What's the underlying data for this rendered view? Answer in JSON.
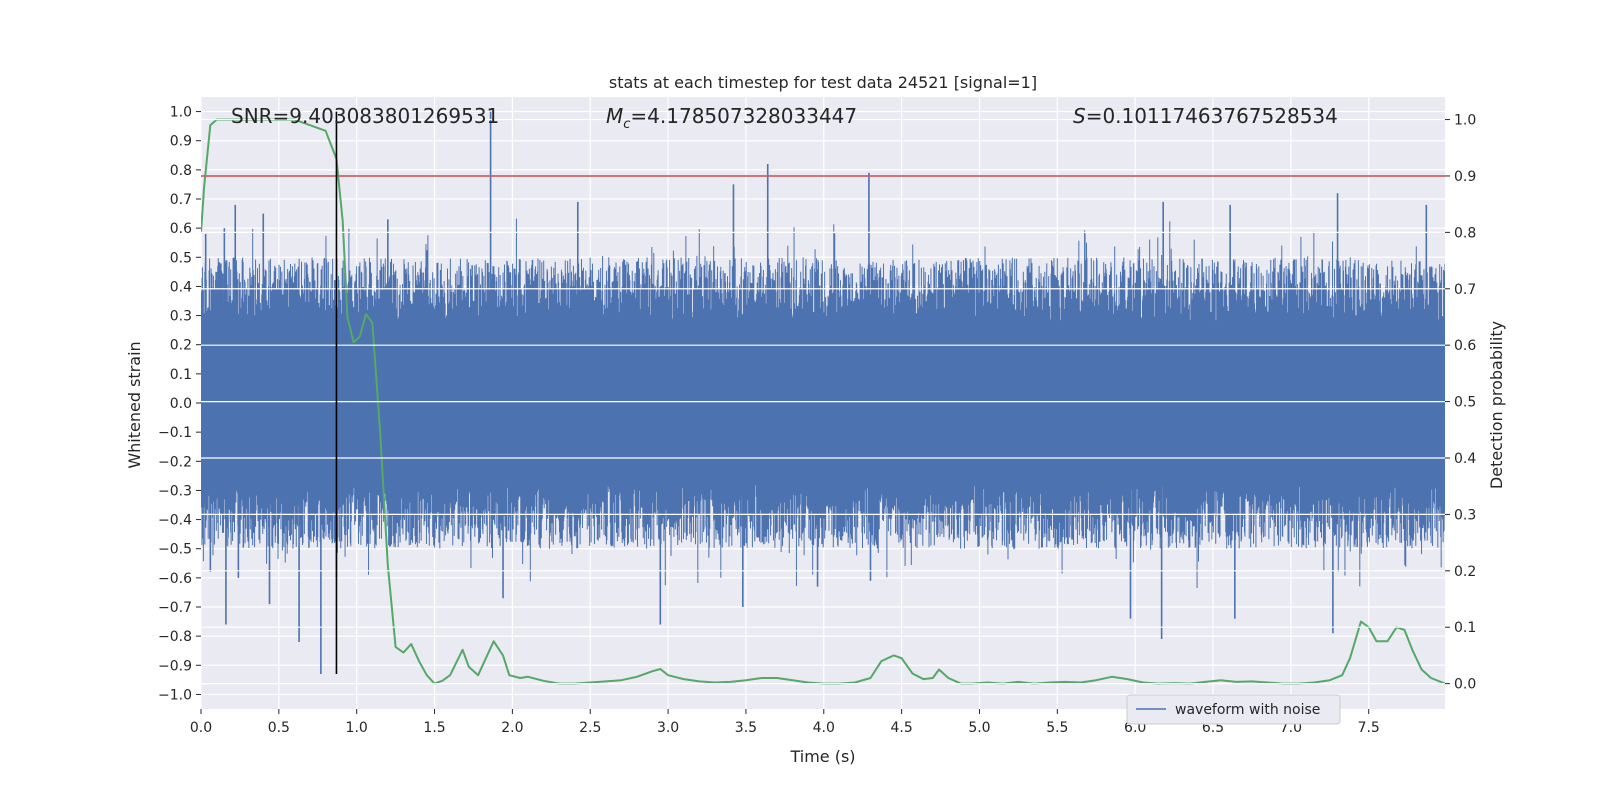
{
  "chart_data": {
    "type": "line",
    "title": "stats at each timestep for test data 24521 [signal=1]",
    "xlabel": "Time (s)",
    "ylabel": "Whitened strain",
    "y2label": "Detection probability",
    "xlim": [
      0.0,
      7.99
    ],
    "ylim": [
      -1.05,
      1.05
    ],
    "y2lim": [
      -0.045,
      1.04
    ],
    "xticks": [
      "0.0",
      "0.5",
      "1.0",
      "1.5",
      "2.0",
      "2.5",
      "3.0",
      "3.5",
      "4.0",
      "4.5",
      "5.0",
      "5.5",
      "6.0",
      "6.5",
      "7.0",
      "7.5"
    ],
    "yticks": [
      "1.0",
      "0.9",
      "0.8",
      "0.7",
      "0.6",
      "0.5",
      "0.4",
      "0.3",
      "0.2",
      "0.1",
      "0.0",
      "-0.1",
      "-0.2",
      "-0.3",
      "-0.4",
      "-0.5",
      "-0.6",
      "-0.7",
      "-0.8",
      "-0.9",
      "-1.0"
    ],
    "y2ticks": [
      "1.0",
      "0.9",
      "0.8",
      "0.7",
      "0.6",
      "0.5",
      "0.4",
      "0.3",
      "0.2",
      "0.1",
      "0.0"
    ],
    "grid": true,
    "legend": {
      "position": "lower-right",
      "entries": [
        "waveform with noise"
      ]
    },
    "annotations": {
      "snr": "SNR=9.403083801269531",
      "mc_symbol": "M",
      "mc_sub": "c",
      "mc_value": "=4.178507328033447",
      "s_symbol": "S",
      "s_value": "=0.10117463767528534"
    },
    "threshold_line": {
      "y2": 0.9,
      "color": "#c44e52"
    },
    "event_marker": {
      "x": 0.87,
      "y_range": [
        -0.93,
        1.0
      ],
      "color": "#000000"
    },
    "series": [
      {
        "name": "waveform with noise",
        "axis": "left",
        "color": "#4c72b0",
        "render": "dense-noise",
        "core_amplitude": 0.28,
        "envelope_amplitude": 0.45,
        "peaks": [
          {
            "x": 0.03,
            "y": 0.58
          },
          {
            "x": 0.06,
            "y": -0.58
          },
          {
            "x": 0.1,
            "y": 0.45
          },
          {
            "x": 0.15,
            "y": 0.6
          },
          {
            "x": 0.16,
            "y": -0.76
          },
          {
            "x": 0.22,
            "y": 0.68
          },
          {
            "x": 0.24,
            "y": -0.6
          },
          {
            "x": 0.4,
            "y": 0.65
          },
          {
            "x": 0.44,
            "y": -0.69
          },
          {
            "x": 0.63,
            "y": -0.82
          },
          {
            "x": 0.77,
            "y": -0.93
          },
          {
            "x": 0.87,
            "y": -0.6
          },
          {
            "x": 1.2,
            "y": 0.63
          },
          {
            "x": 1.86,
            "y": 1.0
          },
          {
            "x": 1.94,
            "y": -0.67
          },
          {
            "x": 2.42,
            "y": 0.69
          },
          {
            "x": 2.95,
            "y": -0.76
          },
          {
            "x": 3.42,
            "y": 0.75
          },
          {
            "x": 3.48,
            "y": -0.7
          },
          {
            "x": 3.64,
            "y": 0.82
          },
          {
            "x": 3.96,
            "y": -0.63
          },
          {
            "x": 4.3,
            "y": -0.61
          },
          {
            "x": 4.29,
            "y": 0.79
          },
          {
            "x": 5.97,
            "y": -0.74
          },
          {
            "x": 6.17,
            "y": -0.81
          },
          {
            "x": 6.18,
            "y": 0.69
          },
          {
            "x": 6.64,
            "y": -0.74
          },
          {
            "x": 6.61,
            "y": 0.68
          },
          {
            "x": 7.27,
            "y": -0.79
          },
          {
            "x": 7.3,
            "y": 0.72
          },
          {
            "x": 7.87,
            "y": 0.68
          }
        ]
      },
      {
        "name": "",
        "axis": "right",
        "color": "#55a868",
        "x": [
          0.0,
          0.02,
          0.06,
          0.1,
          0.15,
          0.3,
          0.5,
          0.6,
          0.7,
          0.8,
          0.87,
          0.91,
          0.94,
          0.98,
          1.02,
          1.06,
          1.1,
          1.15,
          1.2,
          1.25,
          1.3,
          1.35,
          1.4,
          1.45,
          1.5,
          1.55,
          1.6,
          1.68,
          1.72,
          1.78,
          1.83,
          1.88,
          1.94,
          1.98,
          2.05,
          2.1,
          2.2,
          2.3,
          2.4,
          2.5,
          2.6,
          2.7,
          2.8,
          2.9,
          2.95,
          3.0,
          3.1,
          3.2,
          3.3,
          3.4,
          3.5,
          3.6,
          3.7,
          3.8,
          3.9,
          4.0,
          4.1,
          4.2,
          4.3,
          4.37,
          4.45,
          4.5,
          4.57,
          4.64,
          4.7,
          4.74,
          4.8,
          4.88,
          4.95,
          5.05,
          5.15,
          5.25,
          5.35,
          5.45,
          5.55,
          5.65,
          5.75,
          5.85,
          5.95,
          6.05,
          6.15,
          6.25,
          6.35,
          6.45,
          6.55,
          6.65,
          6.75,
          6.85,
          6.95,
          7.05,
          7.15,
          7.25,
          7.33,
          7.38,
          7.45,
          7.5,
          7.55,
          7.62,
          7.68,
          7.73,
          7.78,
          7.84,
          7.9,
          7.99
        ],
        "values": [
          0.8,
          0.88,
          0.99,
          1.0,
          1.0,
          1.0,
          1.0,
          1.0,
          0.99,
          0.98,
          0.93,
          0.82,
          0.65,
          0.605,
          0.615,
          0.655,
          0.64,
          0.45,
          0.21,
          0.065,
          0.055,
          0.07,
          0.04,
          0.015,
          0.0,
          0.005,
          0.015,
          0.06,
          0.03,
          0.015,
          0.045,
          0.075,
          0.05,
          0.015,
          0.01,
          0.012,
          0.005,
          0.0,
          0.0,
          0.002,
          0.004,
          0.006,
          0.012,
          0.022,
          0.026,
          0.015,
          0.008,
          0.004,
          0.002,
          0.003,
          0.006,
          0.01,
          0.01,
          0.006,
          0.002,
          0.0,
          0.0,
          0.002,
          0.01,
          0.04,
          0.05,
          0.045,
          0.018,
          0.008,
          0.01,
          0.025,
          0.01,
          0.0,
          0.0,
          0.002,
          0.0,
          0.003,
          0.0,
          0.002,
          0.003,
          0.002,
          0.006,
          0.012,
          0.008,
          0.002,
          0.0,
          0.001,
          0.0,
          0.003,
          0.006,
          0.003,
          0.004,
          0.002,
          0.0,
          0.0,
          0.002,
          0.006,
          0.015,
          0.045,
          0.11,
          0.1,
          0.075,
          0.075,
          0.1,
          0.095,
          0.06,
          0.025,
          0.01,
          0.0
        ]
      }
    ]
  }
}
